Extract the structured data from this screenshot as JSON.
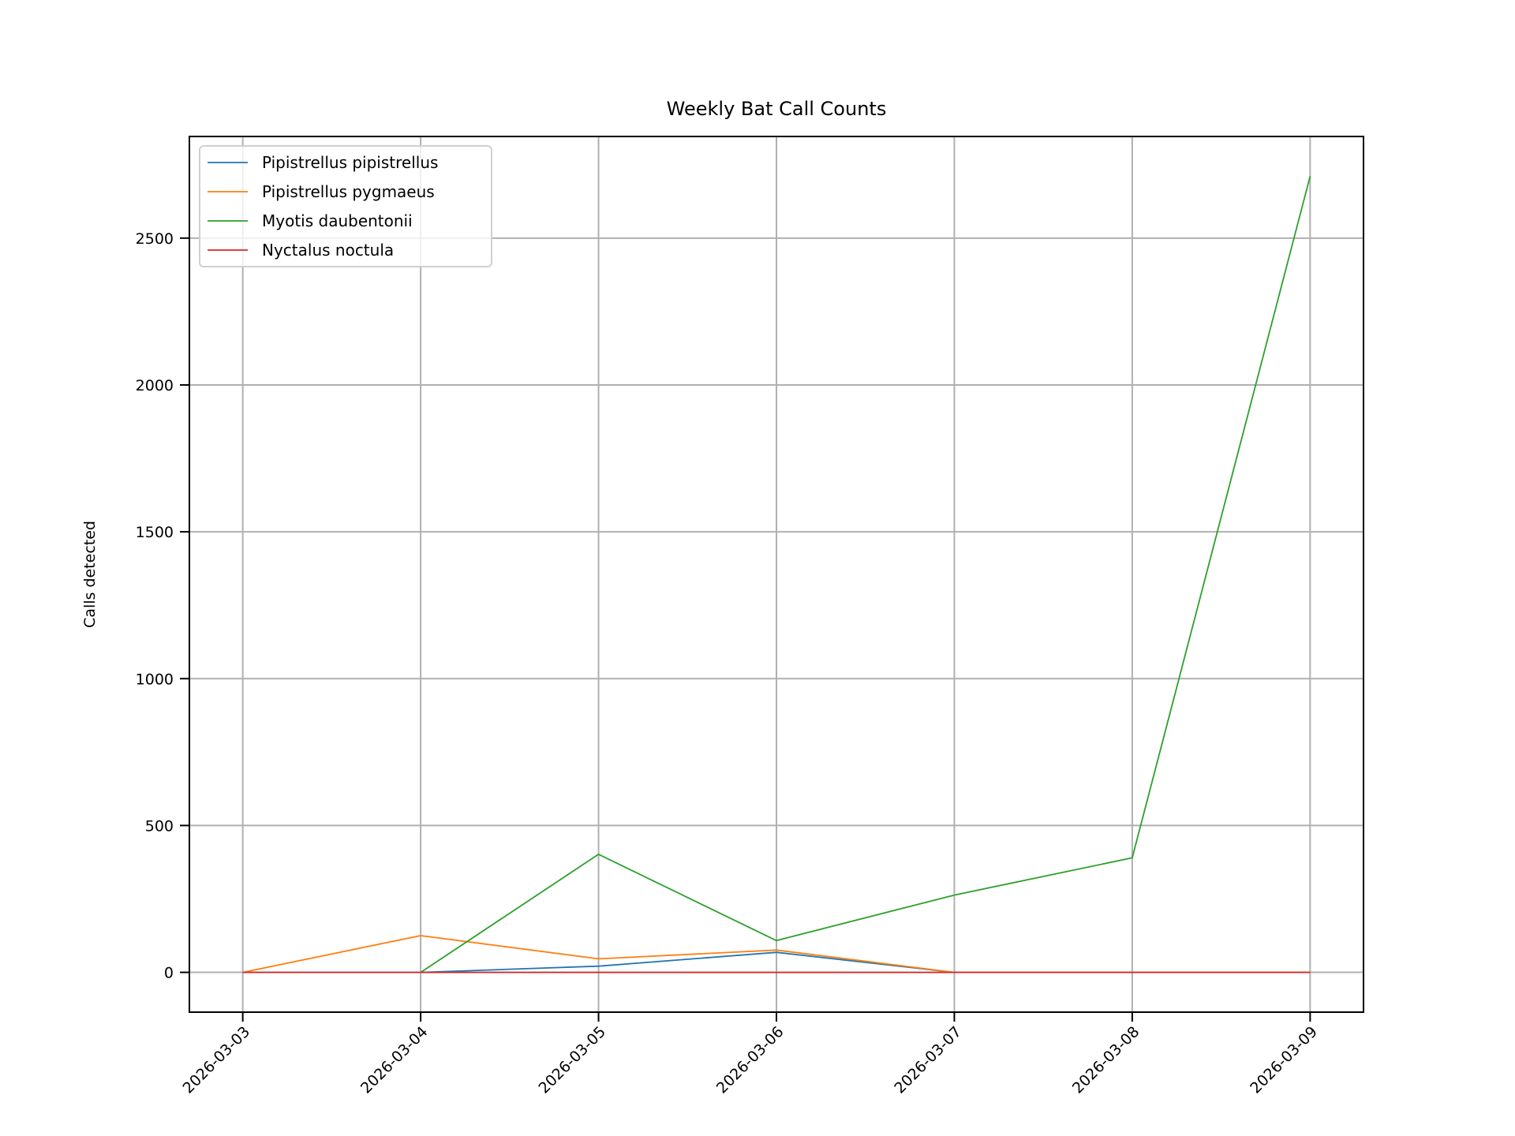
{
  "chart_data": {
    "type": "line",
    "title": "Weekly Bat Call Counts",
    "xlabel": "",
    "ylabel": "Calls detected",
    "categories": [
      "2026-03-03",
      "2026-03-04",
      "2026-03-05",
      "2026-03-06",
      "2026-03-07",
      "2026-03-08",
      "2026-03-09"
    ],
    "ylim": [
      -135.5,
      2846
    ],
    "yticks": [
      0,
      500,
      1000,
      1500,
      2000,
      2500
    ],
    "grid": true,
    "legend_position": "upper-left",
    "series": [
      {
        "name": "Pipistrellus pipistrellus",
        "color": "#1f77b4",
        "values": [
          0,
          0,
          21,
          68,
          0,
          0,
          0
        ]
      },
      {
        "name": "Pipistrellus pygmaeus",
        "color": "#ff7f0e",
        "values": [
          0,
          125,
          46,
          76,
          0,
          0,
          0
        ]
      },
      {
        "name": "Myotis daubentonii",
        "color": "#2ca02c",
        "values": [
          null,
          0,
          402,
          108,
          263,
          390,
          2711
        ]
      },
      {
        "name": "Nyctalus noctula",
        "color": "#d62728",
        "values": [
          0,
          0,
          0,
          0,
          0,
          0,
          0
        ]
      }
    ]
  }
}
